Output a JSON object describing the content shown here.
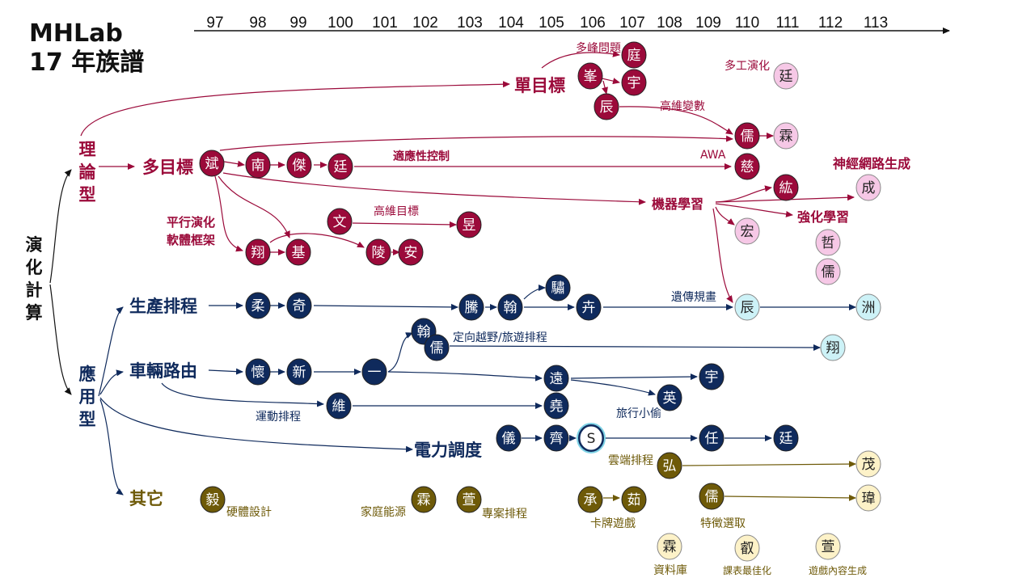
{
  "title": {
    "line1": "MHLab",
    "line2": "17 年族譜"
  },
  "colors": {
    "theory": "#9b0a3a",
    "theory_light": "#f6c8e6",
    "app": "#0f2a5c",
    "app_light": "#cdf2f7",
    "other": "#6e5a08",
    "other_light": "#fdf2c8",
    "ink": "#111111"
  },
  "timeline": [
    "97",
    "98",
    "99",
    "100",
    "101",
    "102",
    "103",
    "104",
    "105",
    "106",
    "107",
    "108",
    "109",
    "110",
    "111",
    "113"
  ],
  "timeline_extra": "112",
  "root_label": [
    "演",
    "化",
    "計",
    "算"
  ],
  "category_labels": {
    "theory": [
      "理",
      "論",
      "型"
    ],
    "application": [
      "應",
      "用",
      "型"
    ]
  },
  "topic_labels": {
    "single_objective": "單目標",
    "multi_objective": "多目標",
    "scheduling": "生產排程",
    "vehicle_routing": "車輛路由",
    "power_dispatch": "電力調度",
    "others": "其它",
    "machine_learning": "機器學習",
    "reinforcement": "強化學習"
  },
  "annotations": {
    "multimodal": "多峰問題",
    "multitask": "多工演化",
    "high_dim_vars": "高維變數",
    "awa": "AWA",
    "adaptive_control": "適應性控制",
    "neural_gen": "神經網路生成",
    "parallel1": "平行演化",
    "parallel2": "軟體框架",
    "high_dim_obj": "高維目標",
    "genetic_prog": "遺傳規畫",
    "orienteering": "定向越野/旅遊排程",
    "sports": "運動排程",
    "tsp_thief": "旅行小偷",
    "cloud": "雲端排程",
    "hardware": "硬體設計",
    "home_energy": "家庭能源",
    "project_sched": "專案排程",
    "card_game": "卡牌遊戲",
    "feature_sel": "特徵選取",
    "database": "資料庫",
    "timetable": "課表最佳化",
    "game_content": "遊戲內容生成"
  },
  "nodes": {
    "ting": "庭",
    "feng": "峯",
    "yu1": "宇",
    "chen1": "辰",
    "ting2": "廷",
    "ru1": "儒",
    "lin1": "霖",
    "ci": "慈",
    "hong1": "紘",
    "cheng": "成",
    "bin": "斌",
    "nan": "南",
    "jie": "傑",
    "ting3": "廷",
    "wen": "文",
    "yu_sun": "昱",
    "xiang1": "翔",
    "ji": "基",
    "ling": "陵",
    "an": "安",
    "hong2": "宏",
    "zhe": "哲",
    "ru2": "儒",
    "rou": "柔",
    "qi": "奇",
    "teng": "騰",
    "han1": "翰",
    "su": "驌",
    "hui": "卉",
    "chen2": "辰",
    "zhou": "洲",
    "han2": "翰",
    "ru3": "儒",
    "xiang2": "翔",
    "huai": "懷",
    "xin": "新",
    "yi": "一",
    "yuan": "遠",
    "yu2": "宇",
    "ying": "英",
    "wei": "維",
    "yao": "堯",
    "yi2": "儀",
    "qi2": "齊",
    "s": "S",
    "ren": "任",
    "ting4": "廷",
    "hong3": "弘",
    "mao": "茂",
    "yi3": "毅",
    "lin2": "霖",
    "xuan": "萱",
    "cheng2": "承",
    "ru_gr": "茹",
    "ru4": "儒",
    "wei2": "瑋",
    "lin3": "霖",
    "rui": "叡",
    "xuan2": "萱"
  }
}
